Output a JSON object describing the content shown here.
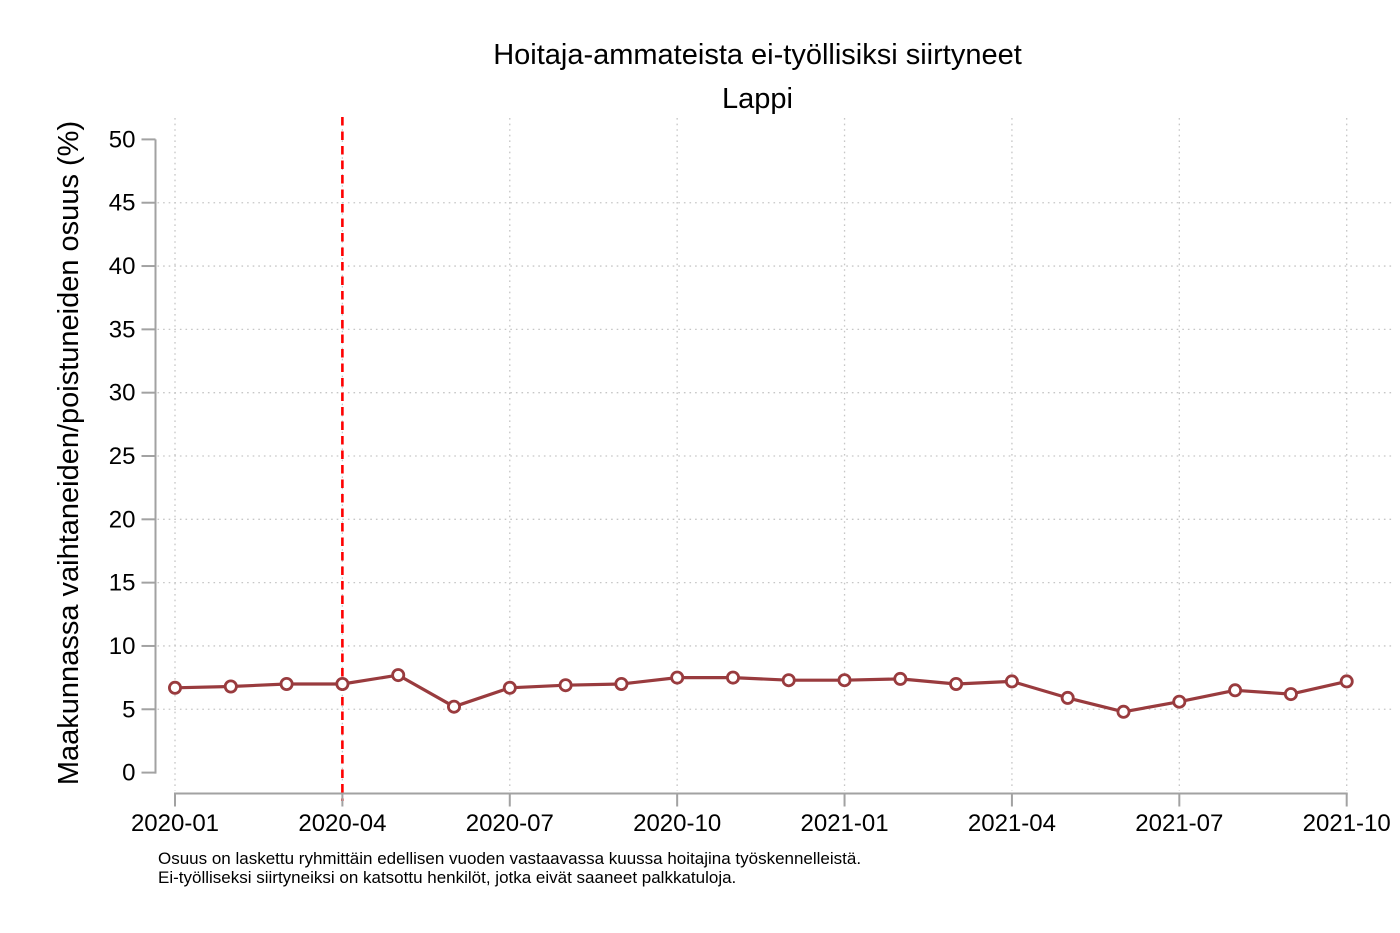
{
  "title": {
    "line1": "Hoitaja-ammateista ei-työllisiksi siirtyneet",
    "line2": "Lappi"
  },
  "y_axis": {
    "label": "Maakunnassa vaihtaneiden/poistuneiden osuus (%)",
    "tick_values": [
      0,
      5,
      10,
      15,
      20,
      25,
      30,
      35,
      40,
      45,
      50
    ]
  },
  "x_axis": {
    "tick_labels": [
      "2020-01",
      "2020-04",
      "2020-07",
      "2020-10",
      "2021-01",
      "2021-04",
      "2021-07",
      "2021-10"
    ]
  },
  "footnote": {
    "line1": "Osuus on laskettu ryhmittäin edellisen vuoden vastaavassa kuussa hoitajina työskennelleistä.",
    "line2": "Ei-työlliseksi siirtyneiksi on katsottu henkilöt, jotka eivät saaneet palkkatuloja."
  },
  "colors": {
    "line": "#993b3e",
    "marker_fill": "#ffffff",
    "event_line": "#fe0000",
    "axis": "#a2a2a2",
    "grid": "#c6c6c6",
    "text": "#000000"
  },
  "chart_data": {
    "type": "line",
    "title": "Hoitaja-ammateista ei-työllisiksi siirtyneet",
    "subtitle": "Lappi",
    "xlabel": "",
    "ylabel": "Maakunnassa vaihtaneiden/poistuneiden osuus (%)",
    "ylim": [
      0,
      50
    ],
    "y_tick_step": 5,
    "grid": true,
    "legend": "none",
    "x": [
      "2020-01",
      "2020-02",
      "2020-03",
      "2020-04",
      "2020-05",
      "2020-06",
      "2020-07",
      "2020-08",
      "2020-09",
      "2020-10",
      "2020-11",
      "2020-12",
      "2021-01",
      "2021-02",
      "2021-03",
      "2021-04",
      "2021-05",
      "2021-06",
      "2021-07",
      "2021-08",
      "2021-09",
      "2021-10"
    ],
    "series": [
      {
        "name": "Lappi",
        "values": [
          6.7,
          6.8,
          7.0,
          7.0,
          7.7,
          5.2,
          6.7,
          6.9,
          7.0,
          7.5,
          7.5,
          7.3,
          7.3,
          7.4,
          7.0,
          7.2,
          5.9,
          4.8,
          5.6,
          6.5,
          6.2,
          7.2
        ]
      }
    ],
    "event_line": {
      "x": "2020-04",
      "style": "dashed",
      "color": "#fe0000"
    },
    "x_tick_labels": [
      "2020-01",
      "2020-04",
      "2020-07",
      "2020-10",
      "2021-01",
      "2021-04",
      "2021-07",
      "2021-10"
    ]
  }
}
